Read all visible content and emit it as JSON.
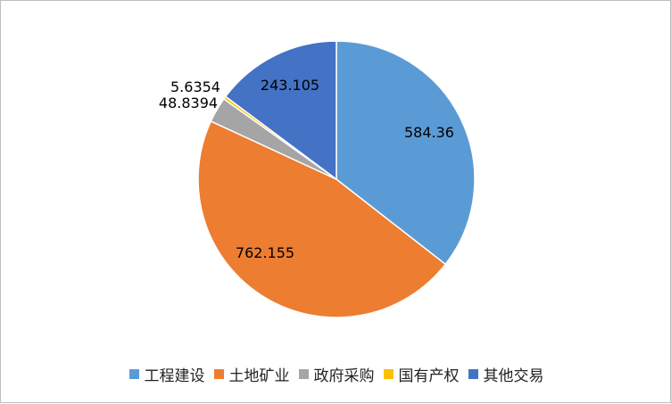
{
  "chart_data": {
    "type": "pie",
    "title": "",
    "categories": [
      "工程建设",
      "土地矿业",
      "政府采购",
      "国有产权",
      "其他交易"
    ],
    "values": [
      584.36,
      762.155,
      48.8394,
      5.6354,
      243.105
    ],
    "value_labels": [
      "584.36",
      "762.155",
      "48.8394",
      "5.6354",
      "243.105"
    ],
    "colors": [
      "#5b9bd5",
      "#ed7d31",
      "#a5a5a5",
      "#ffc000",
      "#4472c4"
    ],
    "start_angle": "12 o'clock",
    "direction": "clockwise",
    "legend_position": "bottom"
  }
}
